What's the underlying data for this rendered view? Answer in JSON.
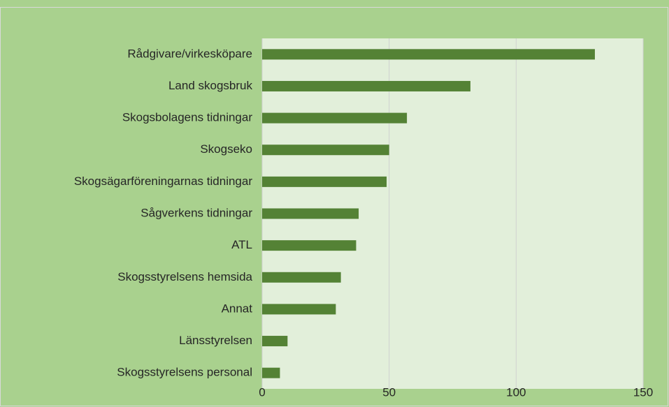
{
  "chart_data": {
    "type": "bar",
    "orientation": "horizontal",
    "categories": [
      "Rådgivare/virkesköpare",
      "Land skogsbruk",
      "Skogsbolagens tidningar",
      "Skogseko",
      "Skogsägarföreningarnas tidningar",
      "Sågverkens tidningar",
      "ATL",
      "Skogsstyrelsens hemsida",
      "Annat",
      "Länsstyrelsen",
      "Skogsstyrelsens personal"
    ],
    "values": [
      131,
      82,
      57,
      50,
      49,
      38,
      37,
      31,
      29,
      10,
      7
    ],
    "color": "#548235",
    "xlim": [
      0,
      150
    ],
    "xticks": [
      0,
      50,
      100,
      150
    ],
    "grid": true
  }
}
